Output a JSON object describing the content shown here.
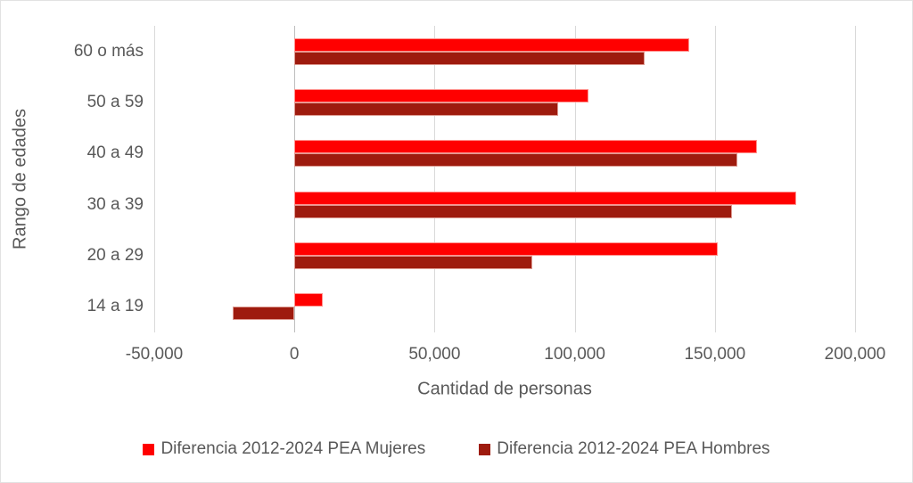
{
  "chart_data": {
    "type": "bar",
    "orientation": "horizontal",
    "title": "",
    "categories": [
      "60 o más",
      "50 a 59",
      "40 a 49",
      "30 a 39",
      "20 a 29",
      "14 a 19"
    ],
    "series": [
      {
        "name": "Diferencia 2012-2024 PEA Mujeres",
        "color": "#FF0000",
        "values": [
          141000,
          105000,
          165000,
          179000,
          151000,
          10000
        ]
      },
      {
        "name": "Diferencia 2012-2024 PEA Hombres",
        "color": "#9E1B0E",
        "values": [
          125000,
          94000,
          158000,
          156000,
          85000,
          -22000
        ]
      }
    ],
    "xlabel": "Cantidad de personas",
    "ylabel": "Rango de edades",
    "xlim": [
      -50000,
      200000
    ],
    "xticks": [
      -50000,
      0,
      50000,
      100000,
      150000,
      200000
    ],
    "xtick_labels": [
      "-50,000",
      "0",
      "50,000",
      "100,000",
      "150,000",
      "200,000"
    ],
    "grid": true,
    "legend_position": "bottom"
  },
  "colors": {
    "gridline": "#D9D9D9",
    "zero_line": "#BDBDBD",
    "text": "#595959",
    "background": "#FFFFFF"
  }
}
